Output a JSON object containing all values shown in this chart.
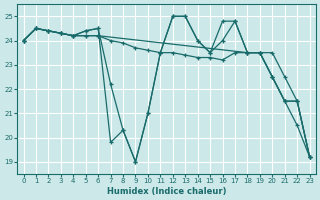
{
  "xlabel": "Humidex (Indice chaleur)",
  "bg_color": "#cce8e8",
  "grid_color": "#ffffff",
  "line_color": "#1a6b6b",
  "xlim": [
    -0.5,
    23.5
  ],
  "ylim": [
    18.5,
    25.5
  ],
  "yticks": [
    19,
    20,
    21,
    22,
    23,
    24,
    25
  ],
  "xticks": [
    0,
    1,
    2,
    3,
    4,
    5,
    6,
    7,
    8,
    9,
    10,
    11,
    12,
    13,
    14,
    15,
    16,
    17,
    18,
    19,
    20,
    21,
    22,
    23
  ],
  "lines": [
    {
      "x": [
        0,
        1,
        2,
        3,
        4,
        5,
        6,
        7,
        8,
        9,
        10,
        11,
        12,
        13,
        14,
        15,
        16,
        17,
        18,
        19,
        20,
        21,
        22,
        23
      ],
      "y": [
        24.0,
        24.5,
        24.4,
        24.3,
        24.2,
        24.2,
        24.2,
        24.0,
        23.9,
        23.7,
        23.6,
        23.5,
        23.5,
        23.4,
        23.3,
        23.3,
        23.2,
        23.5,
        23.5,
        23.5,
        22.5,
        21.5,
        21.5,
        19.2
      ]
    },
    {
      "x": [
        0,
        1,
        2,
        3,
        4,
        5,
        6,
        18,
        19,
        20,
        21,
        22,
        23
      ],
      "y": [
        24.0,
        24.5,
        24.4,
        24.3,
        24.2,
        24.2,
        24.2,
        23.5,
        23.5,
        22.5,
        21.5,
        21.5,
        19.2
      ]
    },
    {
      "x": [
        0,
        1,
        2,
        3,
        4,
        5,
        6,
        7,
        8,
        9,
        10,
        11,
        12,
        13,
        14,
        15,
        16,
        17,
        18,
        19,
        20,
        21,
        22,
        23
      ],
      "y": [
        24.0,
        24.5,
        24.4,
        24.3,
        24.2,
        24.4,
        24.5,
        22.2,
        20.3,
        19.0,
        21.0,
        23.5,
        25.0,
        25.0,
        24.0,
        23.5,
        24.0,
        24.8,
        23.5,
        23.5,
        23.5,
        22.5,
        21.5,
        19.2
      ]
    },
    {
      "x": [
        0,
        1,
        2,
        3,
        4,
        5,
        6,
        7,
        8,
        9,
        10,
        11,
        12,
        13,
        14,
        15,
        16,
        17,
        18,
        19,
        20,
        21,
        22,
        23
      ],
      "y": [
        24.0,
        24.5,
        24.4,
        24.3,
        24.2,
        24.4,
        24.5,
        19.8,
        20.3,
        19.0,
        21.0,
        23.5,
        25.0,
        25.0,
        24.0,
        23.5,
        24.8,
        24.8,
        23.5,
        23.5,
        22.5,
        21.5,
        20.5,
        19.2
      ]
    }
  ]
}
